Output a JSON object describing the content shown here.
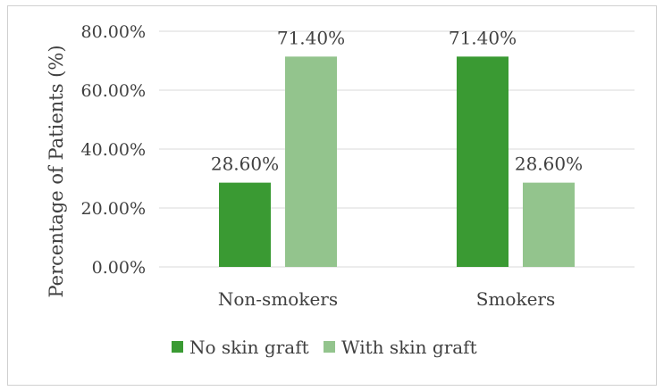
{
  "chart_data": {
    "type": "bar",
    "title": "",
    "xlabel": "",
    "ylabel": "Percentage of Patients (%)",
    "ylim": [
      0,
      80
    ],
    "yticks": [
      0,
      20,
      40,
      60,
      80
    ],
    "ytick_labels": [
      "0.00%",
      "20.00%",
      "40.00%",
      "60.00%",
      "80.00%"
    ],
    "categories": [
      "Non-smokers",
      "Smokers"
    ],
    "series": [
      {
        "name": "No skin graft",
        "color": "#3a9a33",
        "values": [
          28.6,
          71.4
        ],
        "labels": [
          "28.60%",
          "71.40%"
        ]
      },
      {
        "name": "With skin graft",
        "color": "#93c48d",
        "values": [
          71.4,
          28.6
        ],
        "labels": [
          "71.40%",
          "28.60%"
        ]
      }
    ],
    "grid": true,
    "legend_position": "bottom"
  }
}
